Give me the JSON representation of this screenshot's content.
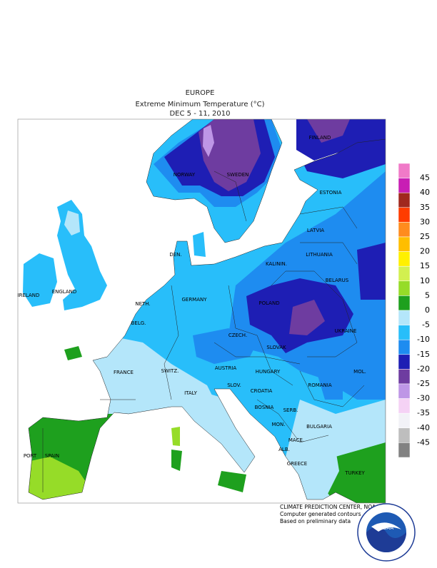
{
  "header": {
    "region": "EUROPE",
    "title": "Extreme Minimum Temperature (°C)",
    "period": "DEC 5 - 11, 2010"
  },
  "countries": [
    "FINLAND",
    "NORWAY",
    "SWEDEN",
    "ESTONIA",
    "LATVIA",
    "LITHUANIA",
    "KALININ.",
    "DEN.",
    "BELARUS",
    "IRELAND",
    "ENGLAND",
    "NETH.",
    "GERMANY",
    "POLAND",
    "BELG.",
    "CZECH.",
    "UKRAINE",
    "SLOVAK",
    "FRANCE",
    "SWITZ.",
    "AUSTRIA",
    "HUNGARY",
    "MOL.",
    "ROMANIA",
    "SLOV.",
    "CROATIA",
    "ITALY",
    "BOSNIA",
    "SERB.",
    "MON.",
    "BULGARIA",
    "MACE.",
    "ALB.",
    "GREECE",
    "PORT",
    "SPAIN",
    "TURKEY"
  ],
  "legend": {
    "labels": [
      45,
      40,
      35,
      30,
      25,
      20,
      15,
      10,
      5,
      0,
      -5,
      -10,
      -15,
      -20,
      -25,
      -30,
      -35,
      -40,
      -45
    ],
    "colors": [
      "#f07ac8",
      "#c81eb4",
      "#a0281e",
      "#ff3c00",
      "#ff8c1e",
      "#ffbe00",
      "#fff000",
      "#d2f050",
      "#96dc28",
      "#1ea01e",
      "#b4e6fa",
      "#28befa",
      "#1e8cf0",
      "#1e1eb4",
      "#6e3ca0",
      "#be96e6",
      "#f5d2f5",
      "#f2f2f7",
      "#bebebe",
      "#828282"
    ]
  },
  "footer": {
    "lines": [
      "CLIMATE PREDICTION CENTER, NOAA",
      "Computer generated contours",
      "Based on preliminary data"
    ],
    "logo": "NOAA"
  }
}
